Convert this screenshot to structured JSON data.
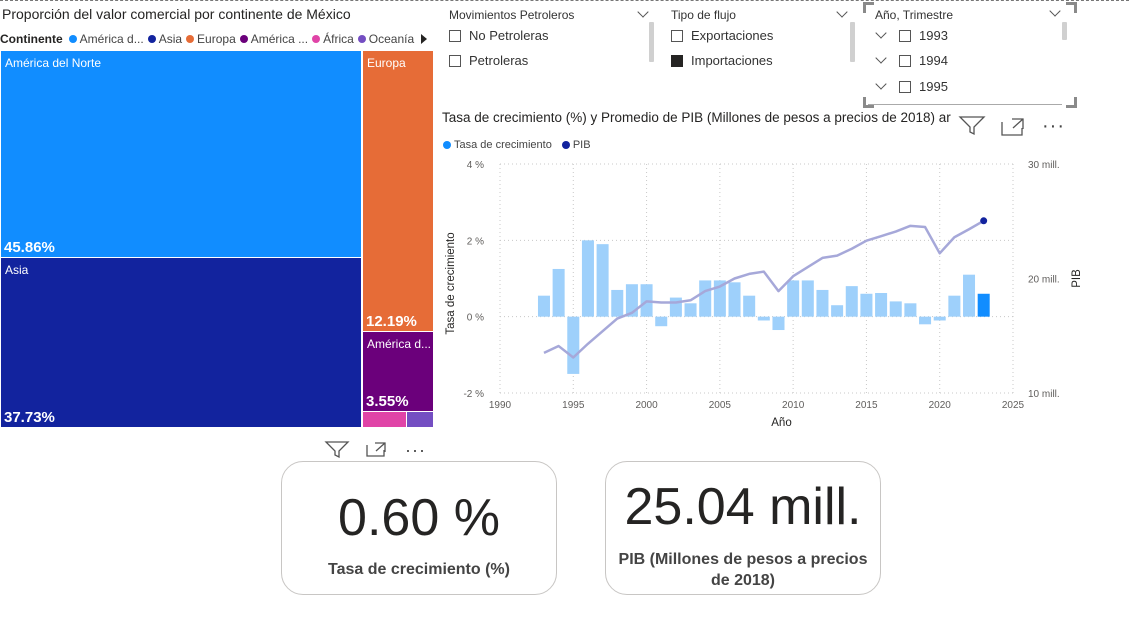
{
  "treemap": {
    "title": "Proporción del valor comercial por continente de México",
    "legend_label": "Continente",
    "legend": [
      {
        "label": "América d...",
        "color": "#118dff"
      },
      {
        "label": "Asia",
        "color": "#12239e"
      },
      {
        "label": "Europa",
        "color": "#e66c37"
      },
      {
        "label": "América ...",
        "color": "#6b007b"
      },
      {
        "label": "África",
        "color": "#e044a7"
      },
      {
        "label": "Oceanía",
        "color": "#744ec2"
      }
    ],
    "tiles": [
      {
        "name": "América del Norte",
        "pct": "45.86%",
        "color": "#118dff"
      },
      {
        "name": "Asia",
        "pct": "37.73%",
        "color": "#12239e"
      },
      {
        "name": "Europa",
        "pct": "12.19%",
        "color": "#e66c37"
      },
      {
        "name": "América d...",
        "pct": "3.55%",
        "color": "#6b007b"
      },
      {
        "name": "",
        "pct": "",
        "color": "#e044a7"
      },
      {
        "name": "",
        "pct": "",
        "color": "#744ec2"
      }
    ]
  },
  "slicers": {
    "petroleros": {
      "title": "Movimientos Petroleros",
      "options": [
        {
          "label": "No Petroleras",
          "checked": false
        },
        {
          "label": "Petroleras",
          "checked": false
        }
      ]
    },
    "flujo": {
      "title": "Tipo de flujo",
      "options": [
        {
          "label": "Exportaciones",
          "checked": false
        },
        {
          "label": "Importaciones",
          "checked": true
        }
      ]
    },
    "anio": {
      "title": "Año, Trimestre",
      "options": [
        {
          "label": "1993",
          "checked": false
        },
        {
          "label": "1994",
          "checked": false
        },
        {
          "label": "1995",
          "checked": false
        }
      ]
    }
  },
  "combo": {
    "title": "Tasa de crecimiento (%) y Promedio de PIB (Millones de pesos a precios de 2018) ar",
    "legend": [
      {
        "label": "Tasa de crecimiento",
        "color": "#118dff"
      },
      {
        "label": "PIB",
        "color": "#12239e"
      }
    ]
  },
  "chart_data": {
    "type": "bar",
    "xlabel": "Año",
    "ylabel": "Tasa de crecimiento",
    "y2label": "PIB",
    "xlim": [
      1990,
      2025
    ],
    "x_ticks": [
      "1990",
      "1995",
      "2000",
      "2005",
      "2010",
      "2015",
      "2020",
      "2025"
    ],
    "ylim": [
      -2,
      4
    ],
    "y_ticks": [
      "-2 %",
      "0 %",
      "2 %",
      "4 %"
    ],
    "y2lim": [
      10,
      30
    ],
    "y2_ticks": [
      "10 mill.",
      "20 mill.",
      "30 mill."
    ],
    "grid": true,
    "legend_position": "top-left",
    "bar_color": "#9ed0fb",
    "highlight_color": "#118dff",
    "line_color": "#a6a8d9",
    "series": [
      {
        "name": "Tasa de crecimiento",
        "x": [
          1993,
          1994,
          1995,
          1996,
          1997,
          1998,
          1999,
          2000,
          2001,
          2002,
          2003,
          2004,
          2005,
          2006,
          2007,
          2008,
          2009,
          2010,
          2011,
          2012,
          2013,
          2014,
          2015,
          2016,
          2017,
          2018,
          2019,
          2020,
          2021,
          2022,
          2023
        ],
        "values": [
          0.55,
          1.25,
          -1.5,
          2.0,
          1.9,
          0.7,
          0.85,
          0.85,
          -0.25,
          0.5,
          0.35,
          0.95,
          0.95,
          0.9,
          0.55,
          -0.1,
          -0.35,
          0.95,
          0.95,
          0.7,
          0.3,
          0.8,
          0.6,
          0.62,
          0.4,
          0.35,
          -0.2,
          -0.1,
          0.55,
          1.1,
          0.6
        ]
      },
      {
        "name": "PIB",
        "x": [
          1993,
          1994,
          1995,
          1996,
          1997,
          1998,
          1999,
          2000,
          2001,
          2002,
          2003,
          2004,
          2005,
          2006,
          2007,
          2008,
          2009,
          2010,
          2011,
          2012,
          2013,
          2014,
          2015,
          2016,
          2017,
          2018,
          2019,
          2020,
          2021,
          2022,
          2023
        ],
        "values": [
          13.5,
          14.1,
          13.1,
          14.3,
          15.4,
          16.5,
          17.0,
          18.0,
          17.9,
          17.9,
          18.1,
          18.9,
          19.3,
          20.0,
          20.4,
          20.6,
          18.9,
          20.2,
          21.0,
          21.8,
          22.0,
          22.6,
          23.3,
          23.7,
          24.1,
          24.6,
          24.5,
          22.2,
          23.6,
          24.3,
          25.04
        ]
      }
    ]
  },
  "cards": {
    "growth": {
      "value": "0.60 %",
      "caption": "Tasa de crecimiento (%)"
    },
    "pib": {
      "value": "25.04 mill.",
      "caption_line1": "PIB (Millones de pesos a precios",
      "caption_line2": "de 2018)"
    }
  }
}
